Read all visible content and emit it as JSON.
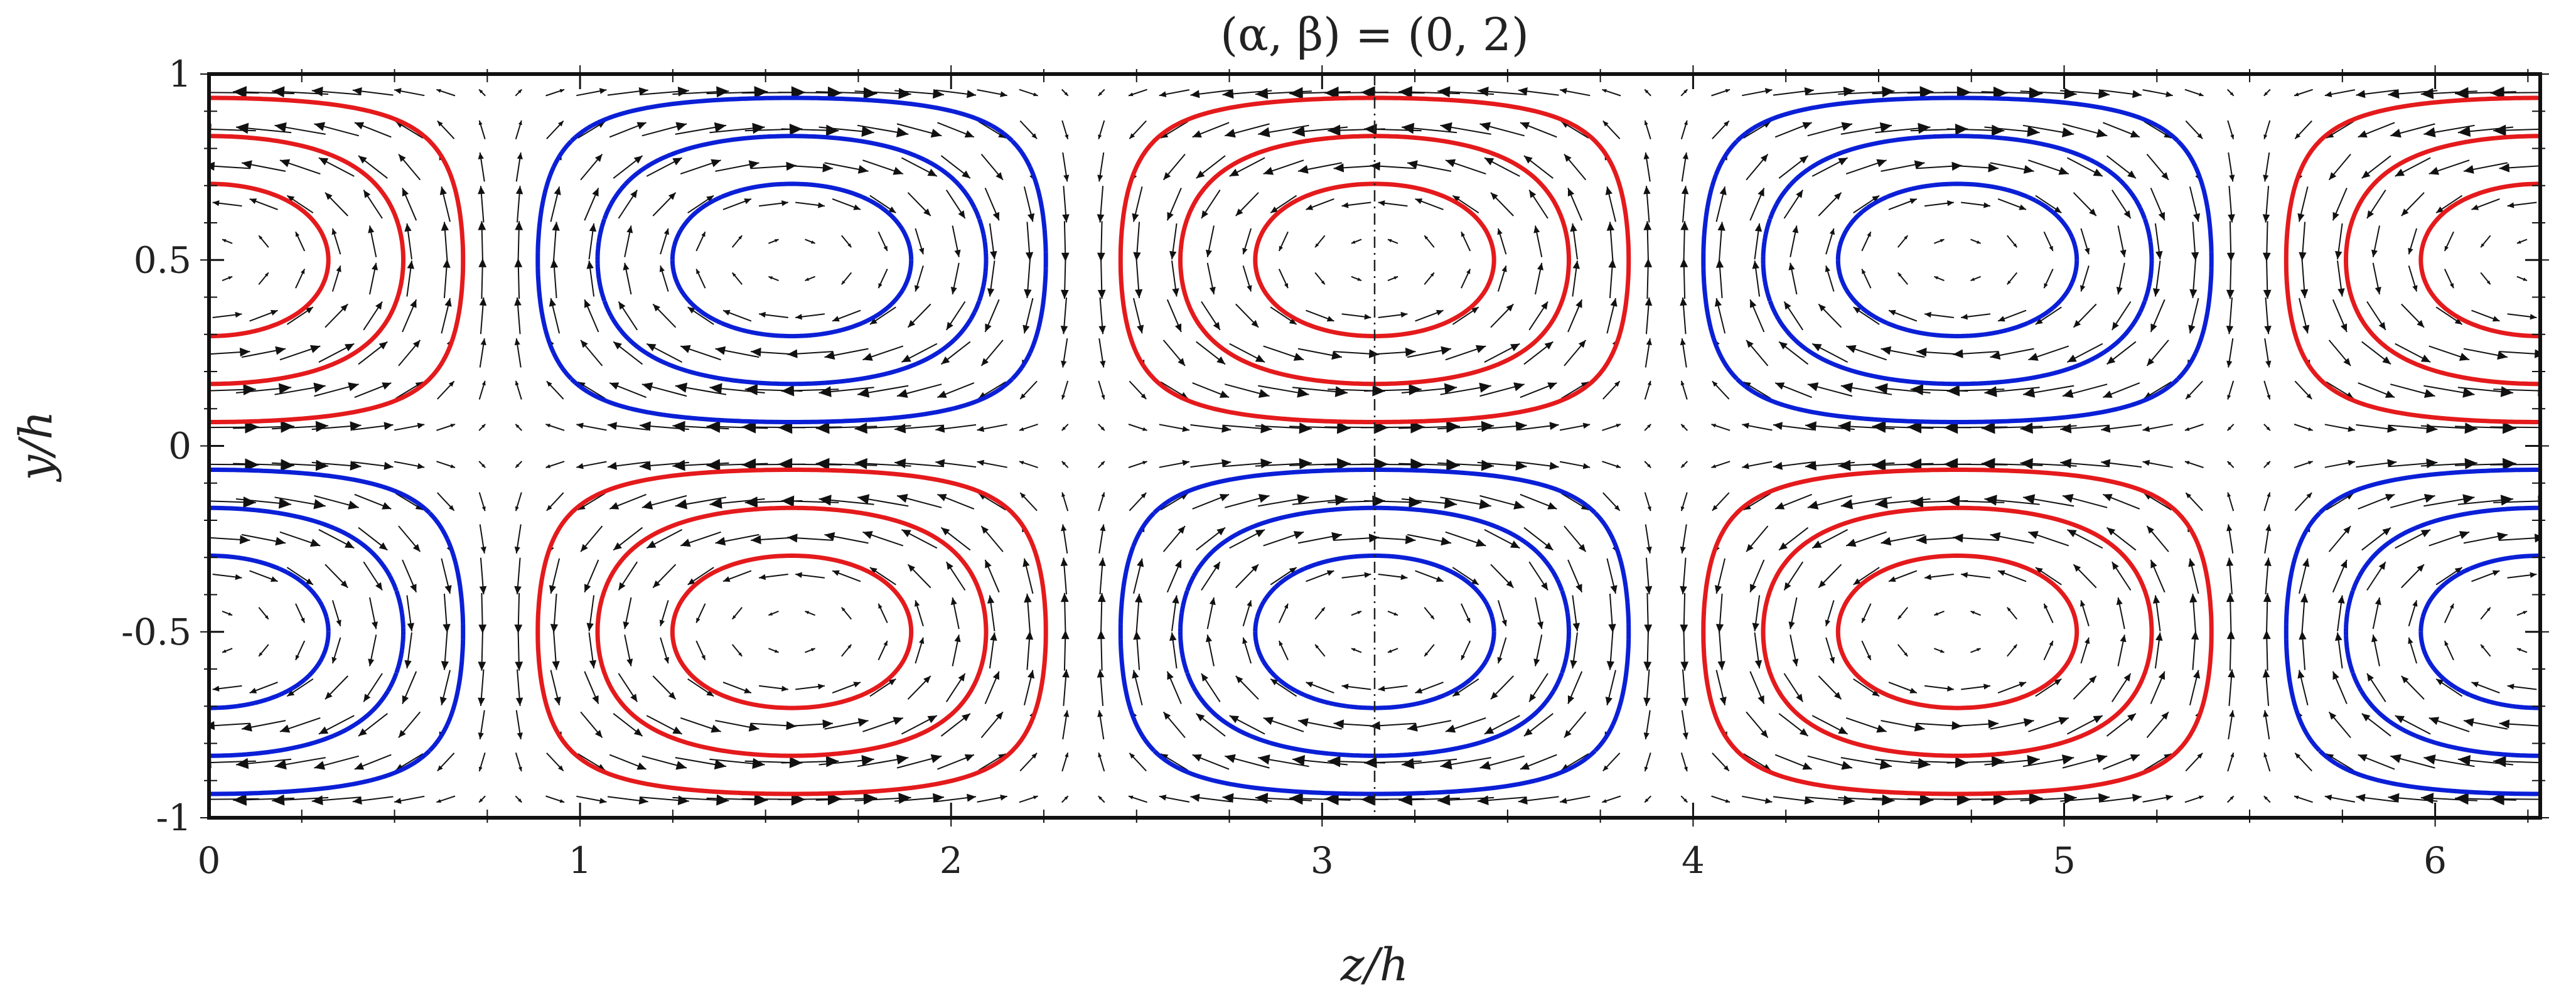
{
  "chart_data": {
    "type": "contour",
    "title": "(α, β) = (0, 2)",
    "xlabel": "z/h",
    "ylabel": "y/h",
    "xlim": [
      0,
      6.2832
    ],
    "ylim": [
      -1,
      1
    ],
    "x_ticks": [
      {
        "value": 0,
        "label": "0"
      },
      {
        "value": 1,
        "label": "1"
      },
      {
        "value": 2,
        "label": "2"
      },
      {
        "value": 3,
        "label": "3"
      },
      {
        "value": 4,
        "label": "4"
      },
      {
        "value": 5,
        "label": "5"
      },
      {
        "value": 6,
        "label": "6"
      }
    ],
    "y_ticks": [
      {
        "value": 1,
        "label": "1"
      },
      {
        "value": 0.5,
        "label": "0.5"
      },
      {
        "value": 0,
        "label": "0"
      },
      {
        "value": -0.5,
        "label": "-0.5"
      },
      {
        "value": -1,
        "label": "-1"
      }
    ],
    "grid": false,
    "field": "cos(beta*z) * sin(pi*y)",
    "beta": 2,
    "contour_levels": [
      0.2,
      0.5,
      0.8
    ],
    "positive_style": {
      "color": "#e41a1c",
      "dash": "solid"
    },
    "negative_style": {
      "color": "#0a1fd6",
      "dash": "dashed"
    },
    "quiver": {
      "nz": 64,
      "ny": 20,
      "color": "#111111"
    }
  }
}
